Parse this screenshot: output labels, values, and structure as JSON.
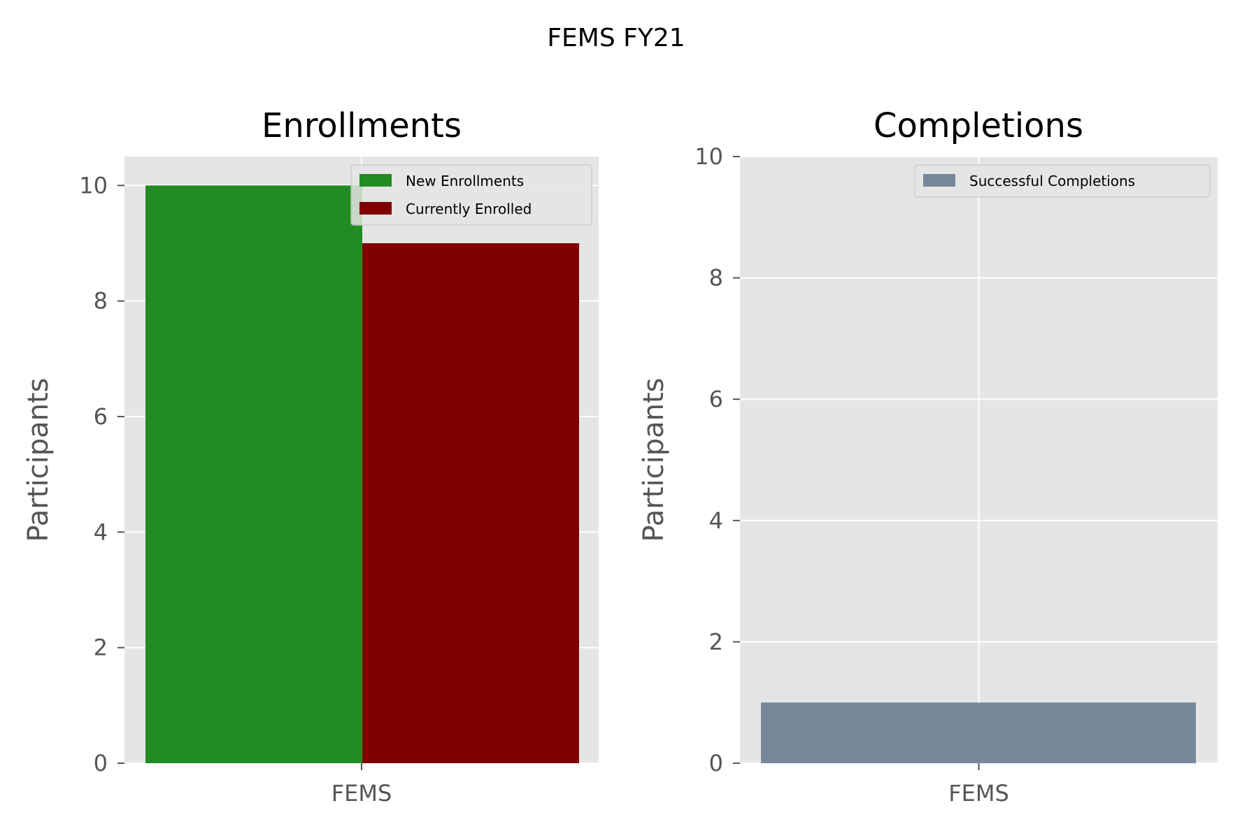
{
  "figure": {
    "suptitle": "FEMS FY21"
  },
  "chart_data": [
    {
      "type": "bar",
      "title": "Enrollments",
      "xlabel": "",
      "ylabel": "Participants",
      "categories": [
        "FEMS"
      ],
      "ylim": [
        0,
        10.5
      ],
      "yticks": [
        0,
        2,
        4,
        6,
        8,
        10
      ],
      "grid": true,
      "legend": "top-right",
      "series": [
        {
          "name": "New Enrollments",
          "values": [
            10
          ],
          "color": "#228b22"
        },
        {
          "name": "Currently Enrolled",
          "values": [
            9
          ],
          "color": "#800000"
        }
      ]
    },
    {
      "type": "bar",
      "title": "Completions",
      "xlabel": "",
      "ylabel": "Participants",
      "categories": [
        "FEMS"
      ],
      "ylim": [
        0,
        10
      ],
      "yticks": [
        0,
        2,
        4,
        6,
        8,
        10
      ],
      "grid": true,
      "legend": "top-right",
      "series": [
        {
          "name": "Successful Completions",
          "values": [
            1
          ],
          "color": "#778899"
        }
      ]
    }
  ],
  "theme": {
    "axes_background": "#e5e5e5",
    "grid_color": "#ffffff",
    "tick_color": "#555555"
  }
}
